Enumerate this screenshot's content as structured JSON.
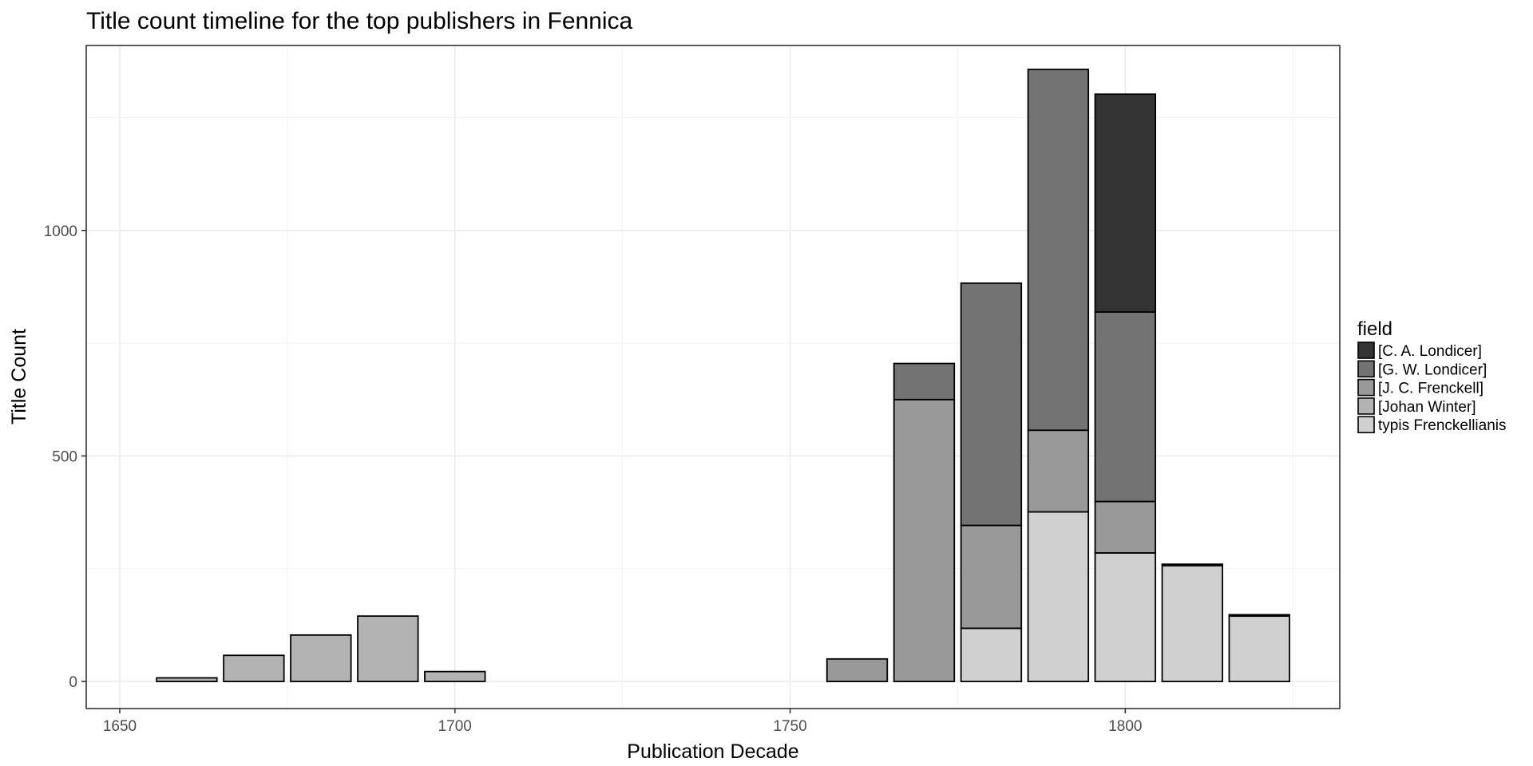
{
  "chart_data": {
    "type": "bar",
    "stacked": true,
    "title": "Title count timeline for the top publishers in Fennica",
    "xlabel": "Publication Decade",
    "ylabel": "Title Count",
    "xlim": [
      1645,
      1832
    ],
    "ylim": [
      -60,
      1410
    ],
    "xticks": [
      1650,
      1700,
      1750,
      1800
    ],
    "yticks": [
      0,
      500,
      1000
    ],
    "bar_width": 9,
    "grid": true,
    "legend": {
      "title": "field",
      "placement": "right"
    },
    "x": [
      1660,
      1670,
      1680,
      1690,
      1700,
      1760,
      1770,
      1780,
      1790,
      1800,
      1810,
      1820
    ],
    "series": [
      {
        "name": "typis Frenckellianis",
        "color": "#d0d0d0",
        "values": [
          0,
          0,
          0,
          0,
          0,
          0,
          0,
          118,
          376,
          285,
          257,
          145
        ]
      },
      {
        "name": "[Johan Winter]",
        "color": "#b3b3b3",
        "values": [
          8,
          58,
          103,
          145,
          22,
          0,
          0,
          0,
          0,
          0,
          0,
          0
        ]
      },
      {
        "name": "[J. C. Frenckell]",
        "color": "#999999",
        "values": [
          0,
          0,
          0,
          0,
          0,
          50,
          625,
          228,
          181,
          114,
          0,
          0
        ]
      },
      {
        "name": "[G. W. Londicer]",
        "color": "#737373",
        "values": [
          0,
          0,
          0,
          0,
          0,
          0,
          80,
          537,
          800,
          420,
          0,
          0
        ]
      },
      {
        "name": "[C. A. Londicer]",
        "color": "#333333",
        "values": [
          0,
          0,
          0,
          0,
          0,
          0,
          0,
          0,
          0,
          483,
          3,
          3
        ]
      }
    ]
  }
}
